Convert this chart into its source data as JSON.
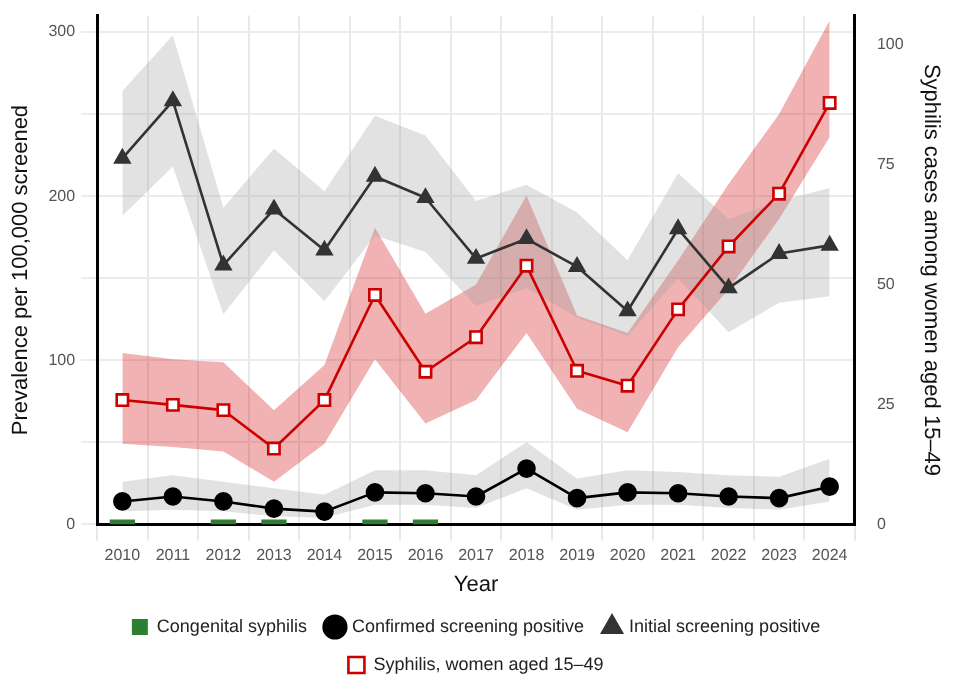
{
  "chart_data": {
    "type": "line",
    "xlabel": "Year",
    "ylabel": "Prevalence per 100,000 screened",
    "y2label": "Syphilis cases among women aged 15–49",
    "categories": [
      "2010",
      "2011",
      "2012",
      "2013",
      "2014",
      "2015",
      "2016",
      "2017",
      "2018",
      "2019",
      "2020",
      "2021",
      "2022",
      "2023",
      "2024"
    ],
    "series": [
      {
        "name": "Confirmed screening positive",
        "color": "#000000",
        "marker": "circle",
        "values": [
          14,
          17,
          14,
          9.6,
          7.8,
          19.5,
          19,
          17,
          34,
          16,
          19.5,
          19,
          17,
          16,
          23
        ],
        "lower": [
          8,
          9,
          8,
          5,
          4,
          12,
          12,
          10,
          22,
          9,
          12,
          12,
          10,
          9,
          14
        ],
        "upper": [
          26,
          30,
          26,
          22,
          18,
          33,
          33,
          30,
          50,
          28,
          33,
          32,
          30,
          29,
          40
        ]
      },
      {
        "name": "Initial screening positive",
        "color": "#333333",
        "marker": "triangle",
        "values": [
          223,
          258,
          158,
          192,
          167,
          212,
          199,
          162,
          174,
          157,
          130,
          180,
          144,
          165,
          170
        ],
        "lower": [
          188,
          218,
          128,
          167,
          136,
          176,
          166,
          133,
          144,
          126,
          115,
          150,
          117,
          135,
          139
        ],
        "upper": [
          264,
          298,
          193,
          229,
          203,
          249,
          237,
          197,
          207,
          190,
          161,
          214,
          186,
          197,
          205
        ]
      },
      {
        "name": "Syphilis, women aged 15–49",
        "color": "#cc0000",
        "marker": "square",
        "axis": "y2",
        "values": [
          25.9,
          24.9,
          23.8,
          15.8,
          25.9,
          47.8,
          31.8,
          39,
          53.9,
          32,
          28.9,
          44.8,
          57.9,
          68.9,
          87.8
        ],
        "lower": [
          16.8,
          16.1,
          15.2,
          8.9,
          16.8,
          34.4,
          21,
          25.9,
          39.9,
          24.1,
          19.2,
          36.9,
          49,
          63.6,
          80.7
        ],
        "upper": [
          35.7,
          34.4,
          33.8,
          23.8,
          33.2,
          61.8,
          43.9,
          50,
          68.5,
          43.5,
          39.9,
          55,
          70.9,
          85.5,
          105
        ]
      },
      {
        "name": "Congenital syphilis",
        "type": "bar",
        "color": "#2e7d32",
        "axis": "y2",
        "values": [
          1,
          0,
          1,
          1,
          0,
          1,
          1,
          0,
          0,
          0,
          0,
          0,
          0,
          0,
          0
        ]
      }
    ],
    "ylim": [
      0,
      310
    ],
    "yticks": [
      0,
      {
        "value": 50,
        "label": null
      },
      100,
      {
        "value": 150,
        "label": null
      },
      200,
      {
        "value": 250,
        "label": null
      },
      300
    ],
    "y2lim": [
      0,
      106
    ],
    "y2ticks": [
      0,
      25,
      50,
      75,
      100
    ],
    "grid": true,
    "legend": "bottom"
  }
}
